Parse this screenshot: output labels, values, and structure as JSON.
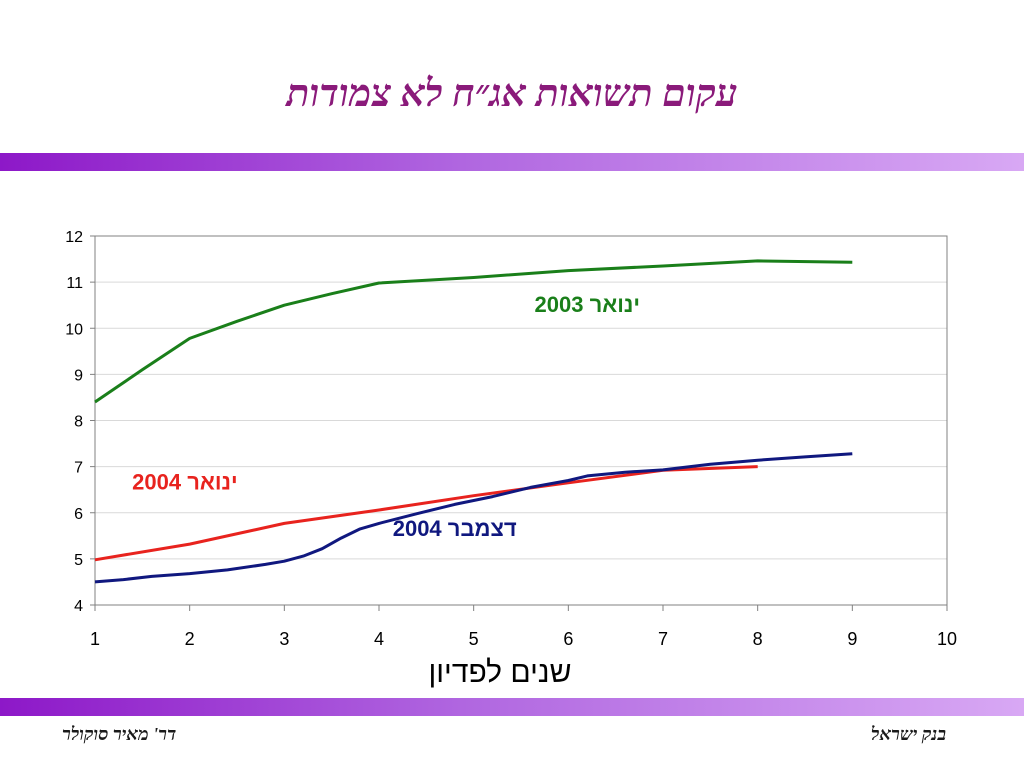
{
  "slide": {
    "title": "עקום תשואות אג״ח לא צמודות",
    "footer_left": "דר' מאיר סוקולר",
    "footer_right": "בנק ישראל"
  },
  "colors": {
    "title": "#8a1a7a",
    "band": "#9b30d8",
    "green": "#1a7f1a",
    "red": "#e8231e",
    "navy": "#10187f"
  },
  "chart_data": {
    "type": "line",
    "title": "",
    "xlabel": "שנים לפדיון",
    "ylabel": "",
    "xlim": [
      1,
      10
    ],
    "ylim": [
      4,
      12
    ],
    "x_ticks": [
      1,
      2,
      3,
      4,
      5,
      6,
      7,
      8,
      9,
      10
    ],
    "y_ticks": [
      4,
      5,
      6,
      7,
      8,
      9,
      10,
      11,
      12
    ],
    "grid": "horizontal",
    "series": [
      {
        "name": "ינואר 2003",
        "color": "#1a7f1a",
        "points": [
          [
            1,
            8.4
          ],
          [
            1.5,
            9.1
          ],
          [
            2,
            9.78
          ],
          [
            2.5,
            10.15
          ],
          [
            3,
            10.5
          ],
          [
            3.5,
            10.75
          ],
          [
            4,
            10.98
          ],
          [
            5,
            11.1
          ],
          [
            6,
            11.25
          ],
          [
            7,
            11.35
          ],
          [
            8,
            11.46
          ],
          [
            9,
            11.43
          ]
        ]
      },
      {
        "name": "ינואר 2004",
        "color": "#e8231e",
        "points": [
          [
            1,
            4.98
          ],
          [
            2,
            5.32
          ],
          [
            3,
            5.77
          ],
          [
            4,
            6.06
          ],
          [
            5,
            6.37
          ],
          [
            6,
            6.65
          ],
          [
            7,
            6.92
          ],
          [
            8,
            7.0
          ]
        ]
      },
      {
        "name": "דצמבר 2004",
        "color": "#10187f",
        "points": [
          [
            1,
            4.5
          ],
          [
            1.3,
            4.55
          ],
          [
            1.6,
            4.62
          ],
          [
            2,
            4.68
          ],
          [
            2.4,
            4.76
          ],
          [
            2.8,
            4.88
          ],
          [
            3.0,
            4.95
          ],
          [
            3.2,
            5.06
          ],
          [
            3.4,
            5.22
          ],
          [
            3.6,
            5.45
          ],
          [
            3.8,
            5.65
          ],
          [
            4.0,
            5.77
          ],
          [
            4.4,
            5.98
          ],
          [
            4.8,
            6.18
          ],
          [
            5.2,
            6.35
          ],
          [
            5.6,
            6.55
          ],
          [
            6.0,
            6.7
          ],
          [
            6.2,
            6.8
          ],
          [
            6.6,
            6.88
          ],
          [
            7.0,
            6.93
          ],
          [
            7.5,
            7.05
          ],
          [
            8.0,
            7.14
          ],
          [
            8.5,
            7.21
          ],
          [
            9.0,
            7.28
          ]
        ]
      }
    ],
    "annotations": [
      {
        "text": "ינואר 2003",
        "color": "#1a7f1a",
        "anchor_x": 6.2,
        "anchor_y": 10.35
      },
      {
        "text": "ינואר 2004",
        "color": "#e8231e",
        "anchor_x": 1.95,
        "anchor_y": 6.5
      },
      {
        "text": "דצמבר 2004",
        "color": "#10187f",
        "anchor_x": 4.8,
        "anchor_y": 5.5
      }
    ]
  }
}
